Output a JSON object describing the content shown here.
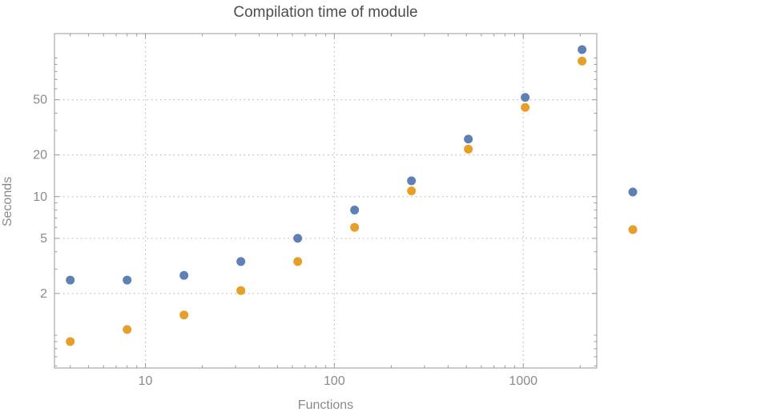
{
  "figure": {
    "title": "Compilation time of module",
    "xlabel": "Functions",
    "ylabel": "Seconds"
  },
  "chart_data": {
    "type": "scatter",
    "title": "Compilation time of module",
    "xlabel": "Functions",
    "ylabel": "Seconds",
    "xscale": "log",
    "yscale": "log",
    "xlim": [
      3.3,
      2450
    ],
    "ylim": [
      0.58,
      150
    ],
    "grid": true,
    "x_ticks": [
      10,
      100,
      1000
    ],
    "y_ticks": [
      2,
      5,
      10,
      20,
      50
    ],
    "x": [
      4,
      8,
      16,
      32,
      64,
      128,
      256,
      512,
      1024,
      2048
    ],
    "series": [
      {
        "name": "",
        "color": "#5e81b5",
        "values": [
          2.5,
          2.5,
          2.7,
          3.4,
          5.0,
          8.0,
          13.0,
          26.0,
          52.0,
          115.0
        ]
      },
      {
        "name": "",
        "color": "#e6a029",
        "values": [
          0.9,
          1.1,
          1.4,
          2.1,
          3.4,
          6.0,
          11.0,
          22.0,
          44.0,
          95.0
        ]
      }
    ],
    "legend": {
      "position": "right-outside",
      "entries": [
        {
          "color": "#5e81b5",
          "label": ""
        },
        {
          "color": "#e6a029",
          "label": ""
        }
      ]
    }
  },
  "colors": {
    "blue": "#5e81b5",
    "orange": "#e6a029",
    "frame": "#9a9a9a",
    "grid": "#bcbcbc",
    "tick_label": "#8a8a8a",
    "title": "#4d4d4d",
    "background": "#ffffff"
  }
}
